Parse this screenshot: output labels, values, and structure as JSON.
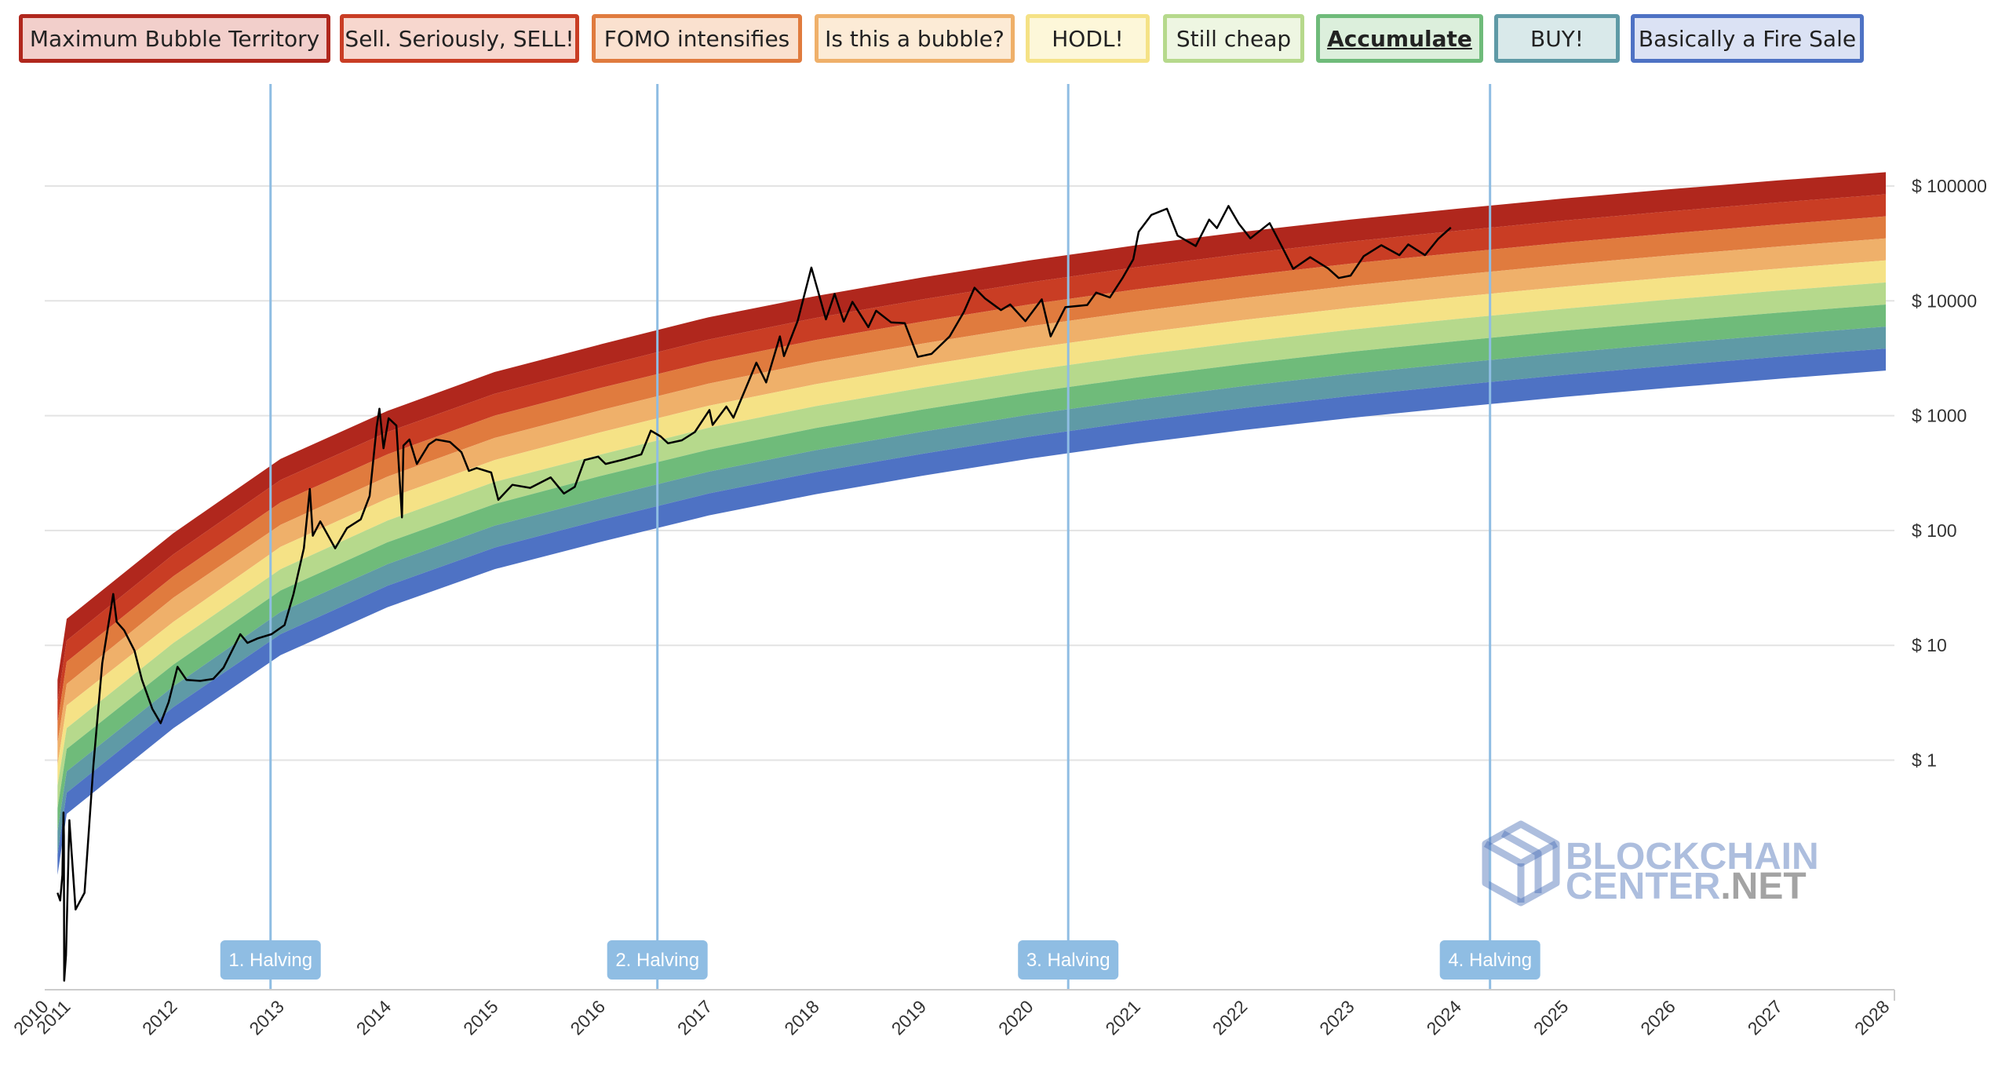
{
  "legend": [
    {
      "label": "Maximum Bubble Territory",
      "color": "#b0271d",
      "bg": "#f2cfcb",
      "active": false
    },
    {
      "label": "Sell. Seriously, SELL!",
      "color": "#c93d24",
      "bg": "#f7d7ce",
      "active": false
    },
    {
      "label": "FOMO intensifies",
      "color": "#e07b3e",
      "bg": "#fae1cf",
      "active": false
    },
    {
      "label": "Is this a bubble?",
      "color": "#efb06a",
      "bg": "#fcebd6",
      "active": false
    },
    {
      "label": "HODL!",
      "color": "#f5e286",
      "bg": "#fdf7d9",
      "active": false
    },
    {
      "label": "Still cheap",
      "color": "#b6d98c",
      "bg": "#eef6e2",
      "active": false
    },
    {
      "label": "Accumulate",
      "color": "#6fbb7a",
      "bg": "#dcefdc",
      "active": true
    },
    {
      "label": "BUY!",
      "color": "#5f9aa6",
      "bg": "#d9e9ea",
      "active": false
    },
    {
      "label": "Basically a Fire Sale",
      "color": "#4e72c4",
      "bg": "#dbe2f4",
      "active": false
    }
  ],
  "chart_data": {
    "type": "line",
    "title": "",
    "xlabel": "",
    "ylabel": "",
    "y_scale": "log",
    "grid": true,
    "legend_position": "top",
    "x_ticks": [
      "2010",
      "2011",
      "2012",
      "2013",
      "2014",
      "2015",
      "2016",
      "2017",
      "2018",
      "2019",
      "2020",
      "2021",
      "2022",
      "2023",
      "2024",
      "2025",
      "2026",
      "2027",
      "2028"
    ],
    "y_ticks": [
      {
        "value": 1,
        "label": "$ 1"
      },
      {
        "value": 10,
        "label": "$ 10"
      },
      {
        "value": 100,
        "label": "$ 100"
      },
      {
        "value": 1000,
        "label": "$ 1000"
      },
      {
        "value": 10000,
        "label": "$ 10000"
      },
      {
        "value": 100000,
        "label": "$ 100000"
      }
    ],
    "band_colors": [
      "#b0271d",
      "#c93d24",
      "#e07b3e",
      "#efb06a",
      "#f5e286",
      "#b6d98c",
      "#6fbb7a",
      "#5f9aa6",
      "#4e72c4"
    ],
    "band_bounds": [
      {
        "x": "2010-08-01",
        "bands": [
          5.0,
          3.2,
          2.1,
          1.4,
          0.9,
          0.6,
          0.38,
          0.24,
          0.15,
          0.1
        ]
      },
      {
        "x": "2011-01-01",
        "bands": [
          17,
          11,
          7.2,
          4.6,
          3.0,
          1.9,
          1.25,
          0.8,
          0.52,
          0.34
        ]
      },
      {
        "x": "2012-01-01",
        "bands": [
          95,
          62,
          40,
          26,
          16,
          10.5,
          6.8,
          4.4,
          2.9,
          1.9
        ]
      },
      {
        "x": "2013-01-01",
        "bands": [
          420,
          275,
          175,
          112,
          72,
          46,
          30,
          19.5,
          12.5,
          8.2
        ]
      },
      {
        "x": "2014-01-01",
        "bands": [
          1100,
          720,
          460,
          295,
          190,
          122,
          79,
          51,
          33,
          21.5
        ]
      },
      {
        "x": "2015-01-01",
        "bands": [
          2400,
          1550,
          1000,
          640,
          410,
          265,
          170,
          110,
          71,
          46
        ]
      },
      {
        "x": "2016-01-01",
        "bands": [
          4200,
          2700,
          1750,
          1120,
          720,
          460,
          300,
          192,
          124,
          80
        ]
      },
      {
        "x": "2017-01-01",
        "bands": [
          7200,
          4600,
          2950,
          1900,
          1220,
          785,
          505,
          325,
          210,
          135
        ]
      },
      {
        "x": "2018-01-01",
        "bands": [
          11000,
          7100,
          4550,
          2930,
          1880,
          1210,
          780,
          500,
          322,
          207
        ]
      },
      {
        "x": "2019-01-01",
        "bands": [
          16000,
          10300,
          6600,
          4250,
          2730,
          1750,
          1130,
          725,
          466,
          300
        ]
      },
      {
        "x": "2020-01-01",
        "bands": [
          22500,
          14500,
          9300,
          6000,
          3850,
          2470,
          1590,
          1020,
          656,
          422
        ]
      },
      {
        "x": "2021-01-01",
        "bands": [
          30500,
          19600,
          12600,
          8100,
          5200,
          3350,
          2150,
          1380,
          890,
          572
        ]
      },
      {
        "x": "2022-01-01",
        "bands": [
          40000,
          25700,
          16500,
          10600,
          6820,
          4380,
          2820,
          1810,
          1165,
          750
        ]
      },
      {
        "x": "2023-01-01",
        "bands": [
          51000,
          32800,
          21100,
          13550,
          8700,
          5600,
          3600,
          2310,
          1485,
          955
        ]
      },
      {
        "x": "2024-01-01",
        "bands": [
          63500,
          40800,
          26200,
          16850,
          10830,
          6960,
          4470,
          2870,
          1845,
          1186
        ]
      },
      {
        "x": "2025-01-01",
        "bands": [
          78000,
          50100,
          32200,
          20700,
          13300,
          8550,
          5500,
          3530,
          2270,
          1460
        ]
      },
      {
        "x": "2026-01-01",
        "bands": [
          94000,
          60400,
          38800,
          24950,
          16030,
          10300,
          6620,
          4255,
          2735,
          1758
        ]
      },
      {
        "x": "2027-01-01",
        "bands": [
          112000,
          72000,
          46250,
          29700,
          19100,
          12280,
          7890,
          5070,
          3260,
          2095
        ]
      },
      {
        "x": "2028-01-01",
        "bands": [
          132000,
          84800,
          54500,
          35000,
          22500,
          14460,
          9290,
          5970,
          3840,
          2470
        ]
      }
    ],
    "series": [
      {
        "name": "",
        "color": "#000000",
        "points": [
          {
            "x": "2010-08-01",
            "y": 0.07
          },
          {
            "x": "2010-09-15",
            "y": 0.06
          },
          {
            "x": "2010-10-20",
            "y": 0.1
          },
          {
            "x": "2010-11-08",
            "y": 0.35
          },
          {
            "x": "2010-11-15",
            "y": 0.22
          },
          {
            "x": "2010-11-20",
            "y": 0.012
          },
          {
            "x": "2010-12-20",
            "y": 0.02
          },
          {
            "x": "2011-01-10",
            "y": 0.3
          },
          {
            "x": "2011-02-01",
            "y": 0.05
          },
          {
            "x": "2011-03-01",
            "y": 0.07
          },
          {
            "x": "2011-04-01",
            "y": 0.9
          },
          {
            "x": "2011-05-01",
            "y": 7
          },
          {
            "x": "2011-06-08",
            "y": 28
          },
          {
            "x": "2011-06-20",
            "y": 16
          },
          {
            "x": "2011-07-15",
            "y": 13.5
          },
          {
            "x": "2011-08-20",
            "y": 9
          },
          {
            "x": "2011-09-15",
            "y": 5
          },
          {
            "x": "2011-10-20",
            "y": 2.8
          },
          {
            "x": "2011-11-18",
            "y": 2.1
          },
          {
            "x": "2011-12-15",
            "y": 3.2
          },
          {
            "x": "2012-01-15",
            "y": 6.5
          },
          {
            "x": "2012-02-15",
            "y": 5
          },
          {
            "x": "2012-04-01",
            "y": 4.9
          },
          {
            "x": "2012-05-15",
            "y": 5.1
          },
          {
            "x": "2012-06-20",
            "y": 6.4
          },
          {
            "x": "2012-08-16",
            "y": 12.5
          },
          {
            "x": "2012-09-10",
            "y": 10.5
          },
          {
            "x": "2012-10-15",
            "y": 11.5
          },
          {
            "x": "2012-12-01",
            "y": 12.5
          },
          {
            "x": "2013-01-15",
            "y": 15
          },
          {
            "x": "2013-02-15",
            "y": 28
          },
          {
            "x": "2013-03-20",
            "y": 70
          },
          {
            "x": "2013-04-10",
            "y": 230
          },
          {
            "x": "2013-04-20",
            "y": 90
          },
          {
            "x": "2013-05-15",
            "y": 120
          },
          {
            "x": "2013-07-05",
            "y": 70
          },
          {
            "x": "2013-08-15",
            "y": 105
          },
          {
            "x": "2013-10-01",
            "y": 125
          },
          {
            "x": "2013-11-01",
            "y": 200
          },
          {
            "x": "2013-11-25",
            "y": 800
          },
          {
            "x": "2013-12-04",
            "y": 1150
          },
          {
            "x": "2013-12-18",
            "y": 520
          },
          {
            "x": "2014-01-05",
            "y": 950
          },
          {
            "x": "2014-02-01",
            "y": 820
          },
          {
            "x": "2014-02-20",
            "y": 130
          },
          {
            "x": "2014-02-25",
            "y": 550
          },
          {
            "x": "2014-03-15",
            "y": 620
          },
          {
            "x": "2014-04-10",
            "y": 380
          },
          {
            "x": "2014-05-20",
            "y": 560
          },
          {
            "x": "2014-06-15",
            "y": 620
          },
          {
            "x": "2014-08-01",
            "y": 590
          },
          {
            "x": "2014-09-10",
            "y": 480
          },
          {
            "x": "2014-10-05",
            "y": 330
          },
          {
            "x": "2014-11-01",
            "y": 350
          },
          {
            "x": "2014-12-20",
            "y": 320
          },
          {
            "x": "2015-01-14",
            "y": 185
          },
          {
            "x": "2015-03-01",
            "y": 250
          },
          {
            "x": "2015-05-01",
            "y": 235
          },
          {
            "x": "2015-07-10",
            "y": 290
          },
          {
            "x": "2015-08-25",
            "y": 210
          },
          {
            "x": "2015-10-01",
            "y": 240
          },
          {
            "x": "2015-11-04",
            "y": 410
          },
          {
            "x": "2015-12-20",
            "y": 440
          },
          {
            "x": "2016-01-15",
            "y": 380
          },
          {
            "x": "2016-03-15",
            "y": 415
          },
          {
            "x": "2016-05-15",
            "y": 460
          },
          {
            "x": "2016-06-17",
            "y": 740
          },
          {
            "x": "2016-07-20",
            "y": 660
          },
          {
            "x": "2016-08-15",
            "y": 575
          },
          {
            "x": "2016-10-01",
            "y": 610
          },
          {
            "x": "2016-11-15",
            "y": 720
          },
          {
            "x": "2017-01-04",
            "y": 1120
          },
          {
            "x": "2017-01-15",
            "y": 830
          },
          {
            "x": "2017-03-01",
            "y": 1200
          },
          {
            "x": "2017-03-25",
            "y": 960
          },
          {
            "x": "2017-05-20",
            "y": 2100
          },
          {
            "x": "2017-06-12",
            "y": 2900
          },
          {
            "x": "2017-07-15",
            "y": 1950
          },
          {
            "x": "2017-09-01",
            "y": 4900
          },
          {
            "x": "2017-09-15",
            "y": 3300
          },
          {
            "x": "2017-11-01",
            "y": 6700
          },
          {
            "x": "2017-12-17",
            "y": 19500
          },
          {
            "x": "2018-02-06",
            "y": 6900
          },
          {
            "x": "2018-03-05",
            "y": 11500
          },
          {
            "x": "2018-04-06",
            "y": 6600
          },
          {
            "x": "2018-05-05",
            "y": 9800
          },
          {
            "x": "2018-06-29",
            "y": 5900
          },
          {
            "x": "2018-07-25",
            "y": 8200
          },
          {
            "x": "2018-09-15",
            "y": 6500
          },
          {
            "x": "2018-11-01",
            "y": 6400
          },
          {
            "x": "2018-12-15",
            "y": 3250
          },
          {
            "x": "2019-02-01",
            "y": 3450
          },
          {
            "x": "2019-04-02",
            "y": 4900
          },
          {
            "x": "2019-05-20",
            "y": 8000
          },
          {
            "x": "2019-06-26",
            "y": 13000
          },
          {
            "x": "2019-08-01",
            "y": 10500
          },
          {
            "x": "2019-09-25",
            "y": 8300
          },
          {
            "x": "2019-10-26",
            "y": 9300
          },
          {
            "x": "2019-12-17",
            "y": 6650
          },
          {
            "x": "2020-02-12",
            "y": 10300
          },
          {
            "x": "2020-03-12",
            "y": 4900
          },
          {
            "x": "2020-05-01",
            "y": 8800
          },
          {
            "x": "2020-07-15",
            "y": 9200
          },
          {
            "x": "2020-08-15",
            "y": 11800
          },
          {
            "x": "2020-10-01",
            "y": 10700
          },
          {
            "x": "2020-11-15",
            "y": 16000
          },
          {
            "x": "2020-12-20",
            "y": 23000
          },
          {
            "x": "2021-01-08",
            "y": 40000
          },
          {
            "x": "2021-02-21",
            "y": 56000
          },
          {
            "x": "2021-04-13",
            "y": 63500
          },
          {
            "x": "2021-05-19",
            "y": 37000
          },
          {
            "x": "2021-07-20",
            "y": 30000
          },
          {
            "x": "2021-09-05",
            "y": 51000
          },
          {
            "x": "2021-10-01",
            "y": 43000
          },
          {
            "x": "2021-11-10",
            "y": 67000
          },
          {
            "x": "2021-12-15",
            "y": 47000
          },
          {
            "x": "2022-01-24",
            "y": 35000
          },
          {
            "x": "2022-03-29",
            "y": 47500
          },
          {
            "x": "2022-05-12",
            "y": 29000
          },
          {
            "x": "2022-06-18",
            "y": 19000
          },
          {
            "x": "2022-08-15",
            "y": 24000
          },
          {
            "x": "2022-10-15",
            "y": 19200
          },
          {
            "x": "2022-11-21",
            "y": 15800
          },
          {
            "x": "2023-01-01",
            "y": 16600
          },
          {
            "x": "2023-02-15",
            "y": 24500
          },
          {
            "x": "2023-04-14",
            "y": 30500
          },
          {
            "x": "2023-06-15",
            "y": 25000
          },
          {
            "x": "2023-07-15",
            "y": 31000
          },
          {
            "x": "2023-09-11",
            "y": 25000
          },
          {
            "x": "2023-10-25",
            "y": 34500
          },
          {
            "x": "2023-12-08",
            "y": 43500
          }
        ]
      }
    ],
    "annotations": [
      {
        "label": "1. Halving",
        "x": "2012-11-28"
      },
      {
        "label": "2. Halving",
        "x": "2016-07-09"
      },
      {
        "label": "3. Halving",
        "x": "2020-05-11"
      },
      {
        "label": "4. Halving",
        "x": "2024-04-20"
      }
    ],
    "watermark": {
      "line1": "BLOCKCHAIN",
      "line2": "CENTER",
      "line2_suffix": ".NET"
    }
  }
}
